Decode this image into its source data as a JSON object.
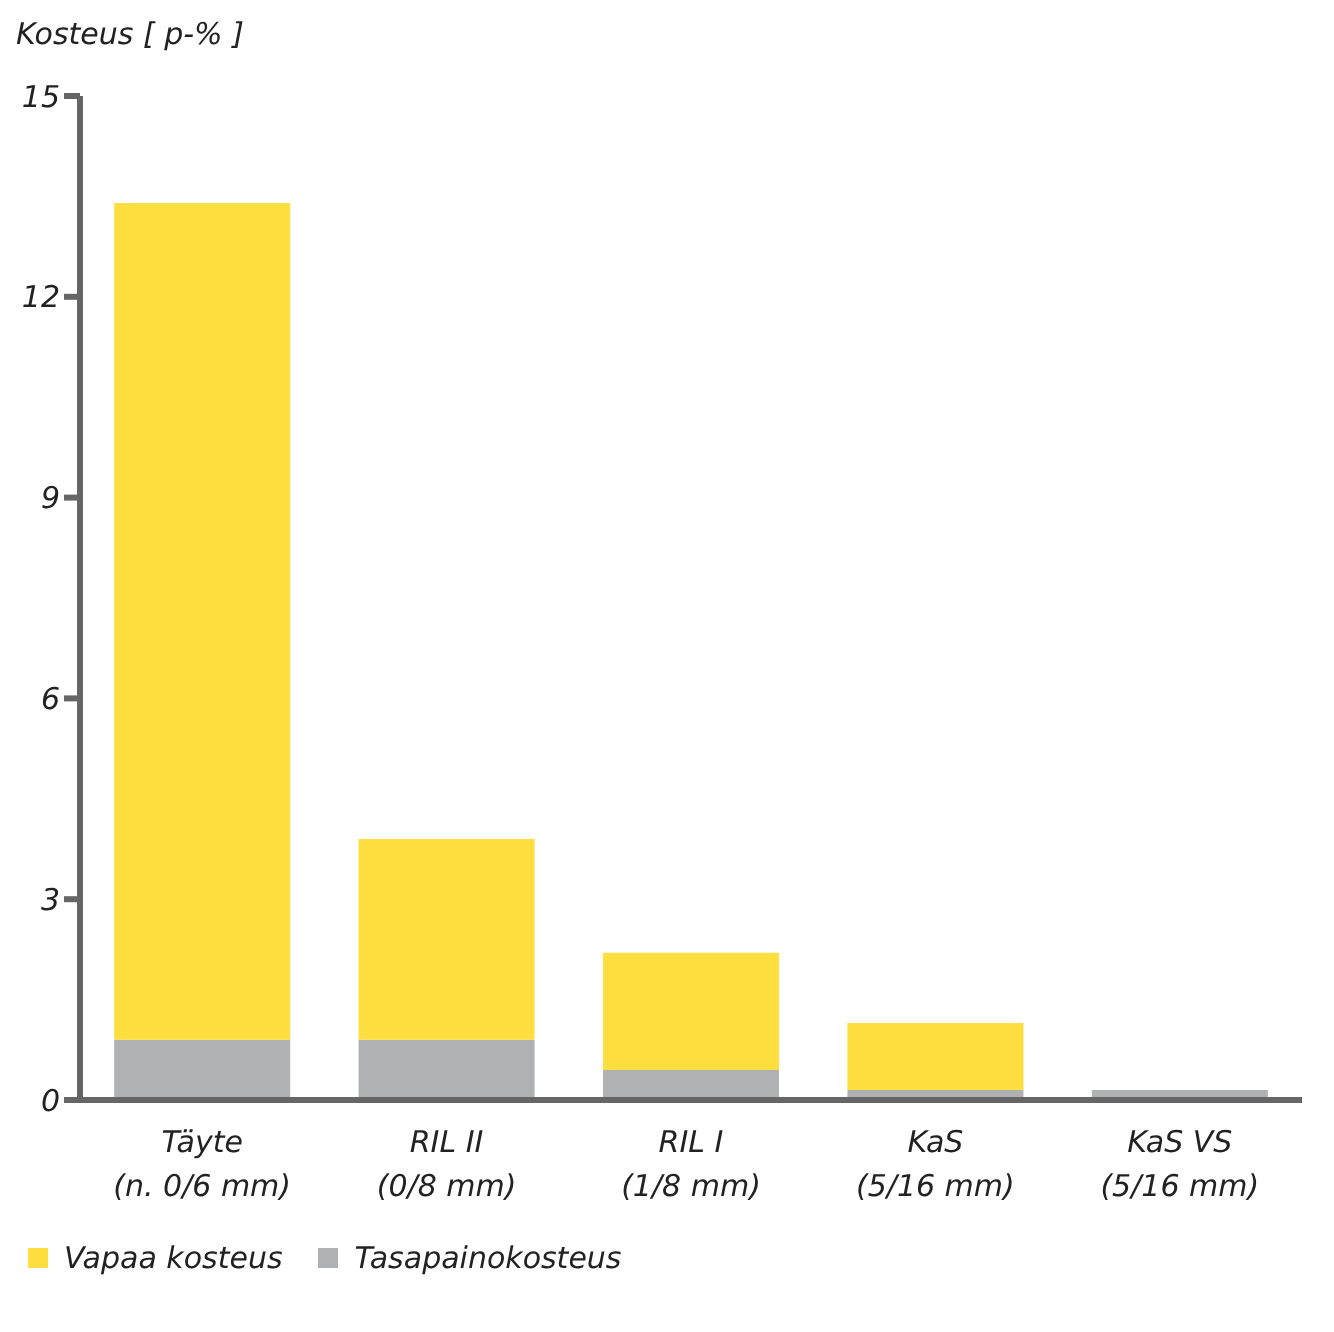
{
  "chart_data": {
    "type": "bar",
    "stacked": true,
    "ylabel": "Kosteus [ p-% ]",
    "categories": [
      "Täyte\n(n. 0/6 mm)",
      "RIL II\n(0/8 mm)",
      "RIL I\n(1/8 mm)",
      "KaS\n(5/16 mm)",
      "KaS VS\n(5/16 mm)"
    ],
    "series": [
      {
        "name": "Tasapainokosteus",
        "color": "#b0b1b3",
        "values": [
          0.9,
          0.9,
          0.45,
          0.15,
          0.15
        ]
      },
      {
        "name": "Vapaa kosteus",
        "color": "#fedf3f",
        "values": [
          12.5,
          3.0,
          1.75,
          1.0,
          0
        ]
      }
    ],
    "ylim": [
      0,
      15
    ],
    "yticks": [
      0,
      3,
      6,
      9,
      12,
      15
    ],
    "legend": "bottom left"
  }
}
